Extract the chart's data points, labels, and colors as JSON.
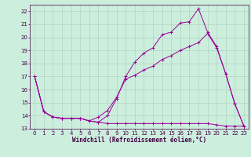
{
  "xlabel": "Windchill (Refroidissement éolien,°C)",
  "bg_color": "#cceedd",
  "grid_color": "#aaccbb",
  "line_color": "#990099",
  "xlim": [
    -0.5,
    23.5
  ],
  "ylim": [
    13,
    22.5
  ],
  "yticks": [
    13,
    14,
    15,
    16,
    17,
    18,
    19,
    20,
    21,
    22
  ],
  "xticks": [
    0,
    1,
    2,
    3,
    4,
    5,
    6,
    7,
    8,
    9,
    10,
    11,
    12,
    13,
    14,
    15,
    16,
    17,
    18,
    19,
    20,
    21,
    22,
    23
  ],
  "line1_x": [
    0,
    1,
    2,
    3,
    4,
    5,
    6,
    7,
    8,
    9,
    10,
    11,
    12,
    13,
    14,
    15,
    16,
    17,
    18,
    19,
    20,
    21,
    22,
    23
  ],
  "line1_y": [
    17,
    14.3,
    13.9,
    13.8,
    13.8,
    13.8,
    13.6,
    13.5,
    14.0,
    15.3,
    17.0,
    18.1,
    18.8,
    19.2,
    20.2,
    20.4,
    21.1,
    21.2,
    22.2,
    20.4,
    19.3,
    17.2,
    14.9,
    13.2
  ],
  "line2_x": [
    0,
    1,
    2,
    3,
    4,
    5,
    6,
    7,
    8,
    9,
    10,
    11,
    12,
    13,
    14,
    15,
    16,
    17,
    18,
    19,
    20,
    21,
    22,
    23
  ],
  "line2_y": [
    17,
    14.3,
    13.9,
    13.8,
    13.8,
    13.8,
    13.6,
    13.9,
    14.4,
    15.4,
    16.8,
    17.1,
    17.5,
    17.8,
    18.3,
    18.6,
    19.0,
    19.3,
    19.6,
    20.3,
    19.2,
    17.2,
    14.9,
    13.2
  ],
  "line3_x": [
    0,
    1,
    2,
    3,
    4,
    5,
    6,
    7,
    8,
    9,
    10,
    11,
    12,
    13,
    14,
    15,
    16,
    17,
    18,
    19,
    20,
    21,
    22,
    23
  ],
  "line3_y": [
    17,
    14.3,
    13.9,
    13.8,
    13.8,
    13.8,
    13.6,
    13.5,
    13.4,
    13.4,
    13.4,
    13.4,
    13.4,
    13.4,
    13.4,
    13.4,
    13.4,
    13.4,
    13.4,
    13.4,
    13.3,
    13.2,
    13.2,
    13.2
  ],
  "tick_fontsize": 5,
  "xlabel_fontsize": 5.5
}
